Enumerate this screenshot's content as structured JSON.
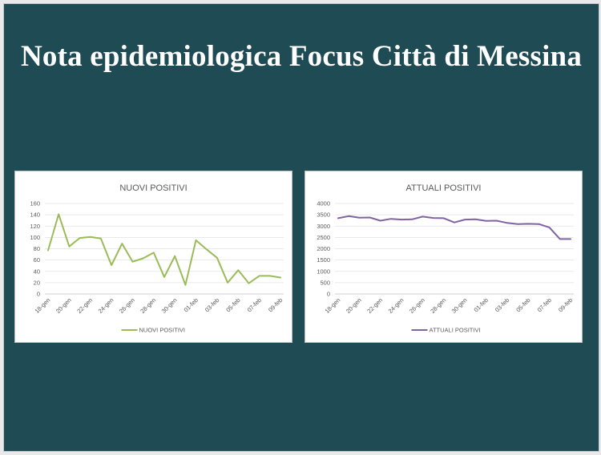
{
  "slide": {
    "title": "Nota epidemiologica Focus Città di Messina"
  },
  "chart_data": [
    {
      "type": "line",
      "title": "NUOVI POSITIVI",
      "color": "#9bbb59",
      "x": [
        "18-gen",
        "19-gen",
        "20-gen",
        "21-gen",
        "22-gen",
        "23-gen",
        "24-gen",
        "25-gen",
        "26-gen",
        "27-gen",
        "28-gen",
        "29-gen",
        "30-gen",
        "31-gen",
        "01-feb",
        "02-feb",
        "03-feb",
        "04-feb",
        "05-feb",
        "06-feb",
        "07-feb",
        "08-feb",
        "09-feb"
      ],
      "x_tick_labels": [
        "18-gen",
        "20-gen",
        "22-gen",
        "24-gen",
        "26-gen",
        "28-gen",
        "30-gen",
        "01-feb",
        "03-feb",
        "05-feb",
        "07-feb",
        "09-feb"
      ],
      "series": [
        {
          "name": "NUOVI POSITIVI",
          "values": [
            77,
            141,
            84,
            99,
            101,
            98,
            51,
            89,
            57,
            63,
            73,
            30,
            67,
            16,
            95,
            79,
            64,
            20,
            42,
            19,
            32,
            32,
            29
          ]
        }
      ],
      "ylim": [
        0,
        160
      ],
      "y_ticks": [
        "0",
        "20",
        "40",
        "60",
        "80",
        "100",
        "120",
        "140",
        "160"
      ],
      "grid": true,
      "legend": "bottom"
    },
    {
      "type": "line",
      "title": "ATTUALI POSITIVI",
      "color": "#8064a2",
      "x": [
        "18-gen",
        "19-gen",
        "20-gen",
        "21-gen",
        "22-gen",
        "23-gen",
        "24-gen",
        "25-gen",
        "26-gen",
        "27-gen",
        "28-gen",
        "29-gen",
        "30-gen",
        "31-gen",
        "01-feb",
        "02-feb",
        "03-feb",
        "04-feb",
        "05-feb",
        "06-feb",
        "07-feb",
        "08-feb",
        "09-feb"
      ],
      "x_tick_labels": [
        "18-gen",
        "20-gen",
        "22-gen",
        "24-gen",
        "26-gen",
        "28-gen",
        "30-gen",
        "01-feb",
        "03-feb",
        "05-feb",
        "07-feb",
        "09-feb"
      ],
      "series": [
        {
          "name": "ATTUALI POSITIVI",
          "values": [
            3350,
            3440,
            3370,
            3380,
            3240,
            3320,
            3290,
            3300,
            3420,
            3360,
            3350,
            3160,
            3290,
            3300,
            3230,
            3240,
            3140,
            3090,
            3100,
            3090,
            2940,
            2430,
            2430
          ]
        }
      ],
      "ylim": [
        0,
        4000
      ],
      "y_ticks": [
        "0",
        "500",
        "1000",
        "1500",
        "2000",
        "2500",
        "3000",
        "3500",
        "4000"
      ],
      "grid": true,
      "legend": "bottom"
    }
  ]
}
